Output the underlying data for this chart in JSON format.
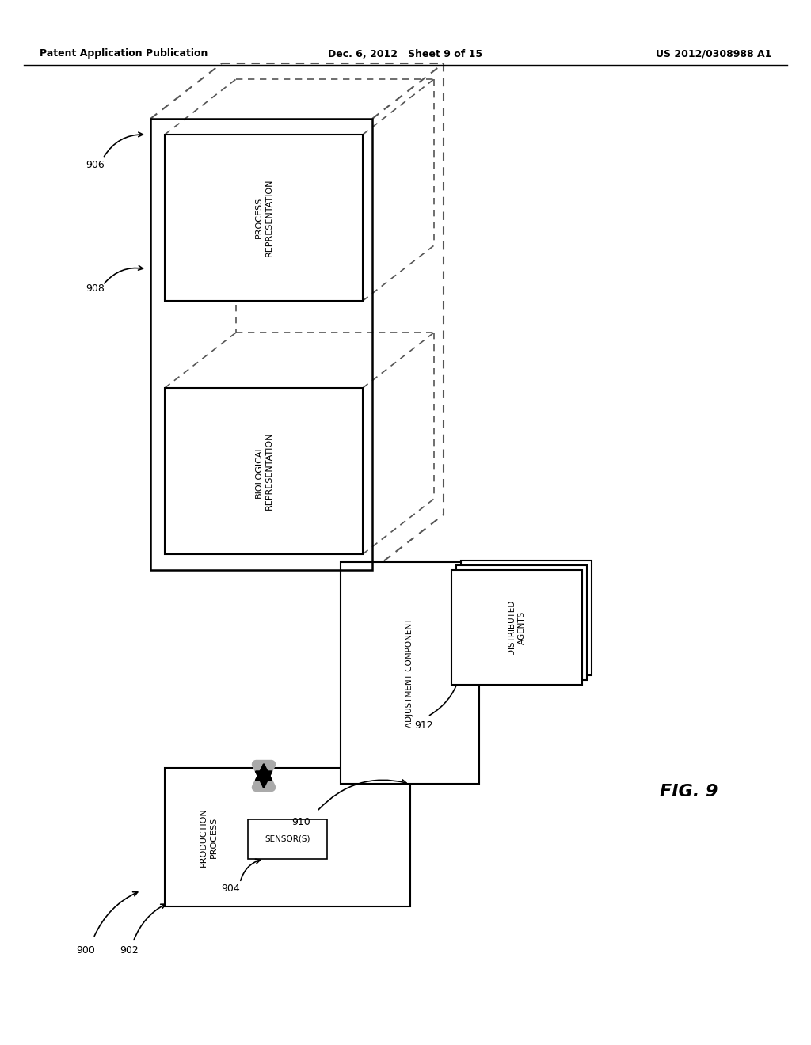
{
  "bg_color": "#ffffff",
  "header_left": "Patent Application Publication",
  "header_mid": "Dec. 6, 2012   Sheet 9 of 15",
  "header_right": "US 2012/0308988 A1",
  "fig_label": "FIG. 9",
  "label_900": "900",
  "label_902": "902",
  "label_904": "904",
  "label_906": "906",
  "label_908": "908",
  "label_910": "910",
  "label_912": "912",
  "text_process_rep": "PROCESS\nREPRESENTATION",
  "text_bio_rep": "BIOLOGICAL\nREPRESENTATION",
  "text_prod_proc": "PRODUCTION\nPROCESS",
  "text_sensors": "SENSOR(S)",
  "text_adjust": "ADJUSTMENT COMPONENT",
  "text_dist_agents": "DISTRIBUTED\nAGENTS"
}
